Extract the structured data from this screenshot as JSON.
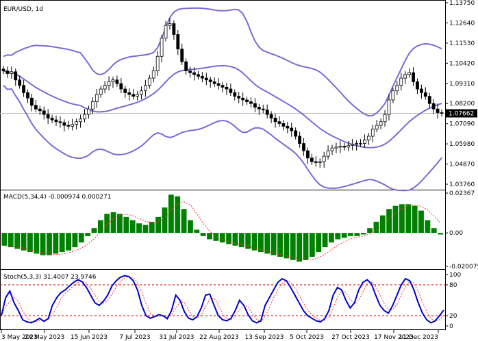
{
  "chart_data": [
    {
      "type": "candlestick",
      "title": "EUR/USD, 1d",
      "last_price": "1.07662",
      "ylim": [
        1.0376,
        1.1375
      ],
      "y_ticks": [
        "1.13750",
        "1.12640",
        "1.11530",
        "1.10420",
        "1.09310",
        "1.08200",
        "1.07090",
        "1.05980",
        "1.04870",
        "1.03760"
      ],
      "bollinger": {
        "upper": "#7b68d8",
        "middle": "#7b68d8",
        "lower": "#7b68d8"
      },
      "closes": [
        1.1,
        1.0985,
        1.0995,
        1.095,
        1.092,
        1.088,
        1.085,
        1.081,
        1.079,
        1.078,
        1.076,
        1.074,
        1.073,
        1.072,
        1.0715,
        1.07,
        1.0695,
        1.0705,
        1.072,
        1.0735,
        1.076,
        1.079,
        1.083,
        1.087,
        1.09,
        1.092,
        1.094,
        1.095,
        1.093,
        1.09,
        1.088,
        1.087,
        1.086,
        1.087,
        1.089,
        1.092,
        1.096,
        1.1,
        1.108,
        1.118,
        1.125,
        1.126,
        1.12,
        1.112,
        1.105,
        1.1,
        1.099,
        1.098,
        1.097,
        1.096,
        1.095,
        1.094,
        1.093,
        1.092,
        1.091,
        1.09,
        1.088,
        1.086,
        1.085,
        1.084,
        1.083,
        1.082,
        1.08,
        1.079,
        1.0785,
        1.076,
        1.074,
        1.072,
        1.071,
        1.0695,
        1.0685,
        1.067,
        1.064,
        1.06,
        1.056,
        1.052,
        1.05,
        1.0495,
        1.05,
        1.053,
        1.056,
        1.0575,
        1.058,
        1.0585,
        1.058,
        1.059,
        1.0595,
        1.06,
        1.06,
        1.062,
        1.064,
        1.068,
        1.07,
        1.072,
        1.076,
        1.084,
        1.089,
        1.092,
        1.096,
        1.098,
        1.099,
        1.094,
        1.09,
        1.088,
        1.086,
        1.082,
        1.079,
        1.077,
        1.0766
      ]
    },
    {
      "type": "bar",
      "title": "MACD(5,34,4) -0.000974 0.000271",
      "ylim": [
        -0.0021,
        0.0025
      ],
      "y_ticks": [
        "0.02367",
        "0.00",
        "-0.020075"
      ],
      "values": [
        -0.0008,
        -0.0009,
        -0.001,
        -0.0011,
        -0.0012,
        -0.0013,
        -0.0014,
        -0.0014,
        -0.0013,
        -0.0012,
        -0.0011,
        -0.0009,
        -0.0006,
        -0.0002,
        0.0003,
        0.0008,
        0.0012,
        0.0013,
        0.0012,
        0.001,
        0.0008,
        0.0006,
        0.0005,
        0.0007,
        0.001,
        0.0016,
        0.0024,
        0.0023,
        0.0015,
        0.0008,
        0.0002,
        -0.0002,
        -0.0004,
        -0.0005,
        -0.0006,
        -0.0007,
        -0.0008,
        -0.0009,
        -0.001,
        -0.0011,
        -0.0012,
        -0.0013,
        -0.0014,
        -0.0015,
        -0.0016,
        -0.0017,
        -0.0018,
        -0.0017,
        -0.0015,
        -0.0012,
        -0.0009,
        -0.0006,
        -0.0004,
        -0.0003,
        -0.0002,
        -0.0002,
        -0.0001,
        0.0003,
        0.0007,
        0.0011,
        0.0015,
        0.0017,
        0.0018,
        0.0018,
        0.0017,
        0.0014,
        0.0008,
        0.0003,
        -0.0001
      ]
    },
    {
      "type": "line",
      "title": "Stoch(5,3,3) 31.4007 23.9746",
      "ylim": [
        0,
        100
      ],
      "y_ticks": [
        "100",
        "80",
        "20",
        "0"
      ],
      "levels": [
        80,
        20
      ],
      "series": [
        {
          "color": "#0000cc",
          "values": [
            20,
            55,
            68,
            45,
            30,
            12,
            8,
            6,
            10,
            15,
            9,
            14,
            40,
            55,
            65,
            70,
            78,
            85,
            90,
            86,
            75,
            60,
            45,
            40,
            48,
            60,
            78,
            88,
            95,
            98,
            96,
            88,
            70,
            40,
            20,
            15,
            18,
            22,
            20,
            14,
            30,
            60,
            50,
            28,
            15,
            12,
            18,
            35,
            60,
            62,
            40,
            20,
            12,
            10,
            15,
            30,
            50,
            40,
            22,
            10,
            6,
            10,
            40,
            55,
            70,
            85,
            92,
            88,
            75,
            60,
            45,
            30,
            20,
            15,
            10,
            8,
            14,
            30,
            60,
            75,
            70,
            50,
            35,
            45,
            70,
            85,
            90,
            82,
            60,
            40,
            30,
            25,
            40,
            60,
            80,
            92,
            88,
            70,
            45,
            25,
            12,
            6,
            10,
            20,
            31
          ]
        }
      ]
    }
  ],
  "x_tick_labels": [
    "3 May 2023",
    "24 May 2023",
    "15 Jun 2023",
    "7 Jul 2023",
    "31 Jul 2023",
    "22 Aug 2023",
    "13 Sep 2023",
    "5 Oct 2023",
    "27 Oct 2023",
    "17 Nov 2023",
    "11 Dec 2023"
  ]
}
